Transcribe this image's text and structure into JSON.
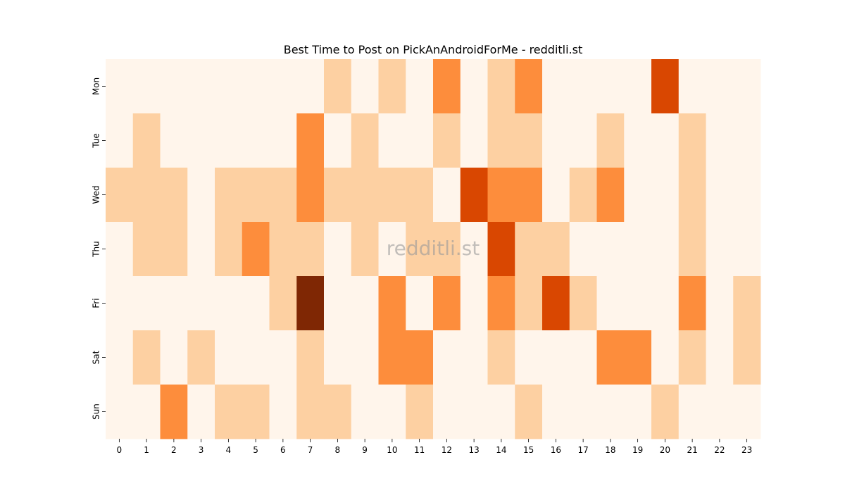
{
  "chart_data": {
    "type": "heatmap",
    "title": "Best Time to Post on PickAnAndroidForMe - redditli.st",
    "watermark": "redditli.st",
    "x_categories": [
      "0",
      "1",
      "2",
      "3",
      "4",
      "5",
      "6",
      "7",
      "8",
      "9",
      "10",
      "11",
      "12",
      "13",
      "14",
      "15",
      "16",
      "17",
      "18",
      "19",
      "20",
      "21",
      "22",
      "23"
    ],
    "y_categories": [
      "Mon",
      "Tue",
      "Wed",
      "Thu",
      "Fri",
      "Sat",
      "Sun"
    ],
    "values": [
      [
        0,
        0,
        0,
        0,
        0,
        0,
        0,
        0,
        1,
        0,
        1,
        0,
        2,
        0,
        1,
        2,
        0,
        0,
        0,
        0,
        3,
        0,
        0,
        0
      ],
      [
        0,
        1,
        0,
        0,
        0,
        0,
        0,
        2,
        0,
        1,
        0,
        0,
        1,
        0,
        1,
        1,
        0,
        0,
        1,
        0,
        0,
        1,
        0,
        0
      ],
      [
        1,
        1,
        1,
        0,
        1,
        1,
        1,
        2,
        1,
        1,
        1,
        1,
        0,
        3,
        2,
        2,
        0,
        1,
        2,
        0,
        0,
        1,
        0,
        0
      ],
      [
        0,
        1,
        1,
        0,
        1,
        2,
        1,
        1,
        0,
        1,
        0,
        1,
        1,
        0,
        3,
        1,
        1,
        0,
        0,
        0,
        0,
        1,
        0,
        0
      ],
      [
        0,
        0,
        0,
        0,
        0,
        0,
        1,
        4,
        0,
        0,
        2,
        0,
        2,
        0,
        2,
        1,
        3,
        1,
        0,
        0,
        0,
        2,
        0,
        1
      ],
      [
        0,
        1,
        0,
        1,
        0,
        0,
        0,
        1,
        0,
        0,
        2,
        2,
        0,
        0,
        1,
        0,
        0,
        0,
        2,
        2,
        0,
        1,
        0,
        1
      ],
      [
        0,
        0,
        2,
        0,
        1,
        1,
        0,
        1,
        1,
        0,
        0,
        1,
        0,
        0,
        0,
        1,
        0,
        0,
        0,
        0,
        1,
        0,
        0,
        0
      ]
    ],
    "colors": [
      "#fff5eb",
      "#fdd0a2",
      "#fd8d3c",
      "#d94701",
      "#7f2704"
    ],
    "legend": "none",
    "grid": false
  }
}
